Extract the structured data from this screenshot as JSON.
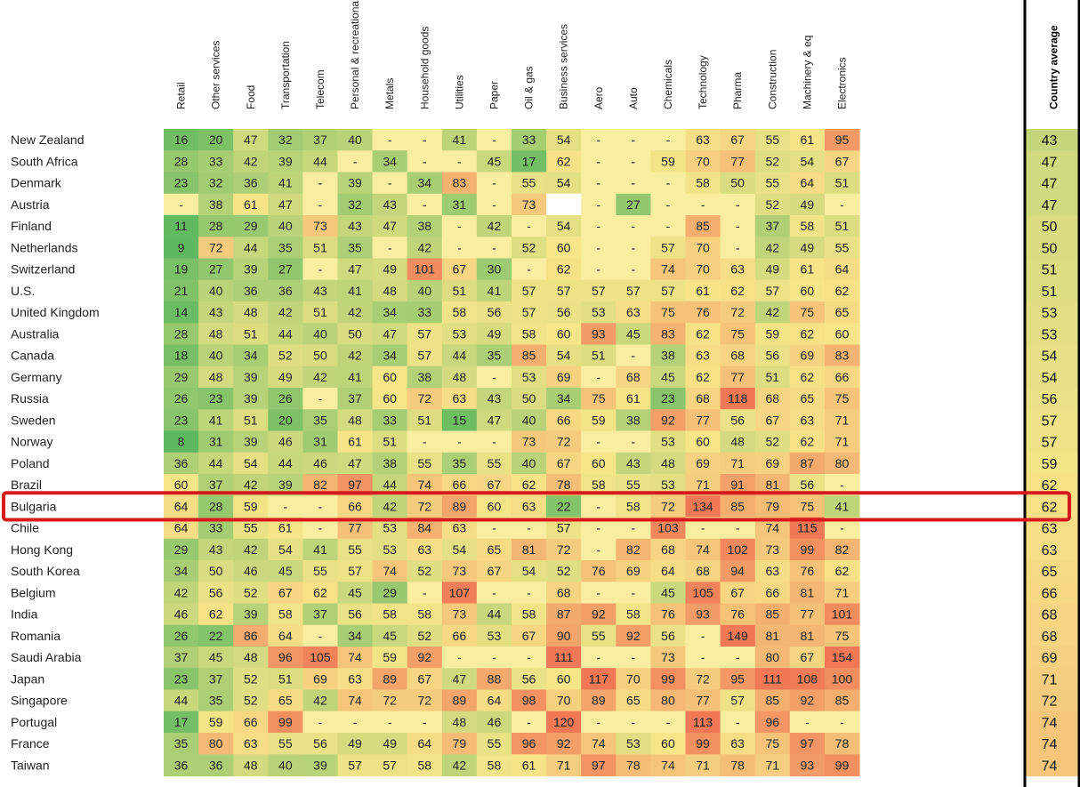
{
  "chart_data": {
    "type": "heatmap",
    "title": "",
    "columns": [
      "Retail",
      "Other services",
      "Food",
      "Transportation",
      "Telecom",
      "Personal & recreational goods",
      "Metals",
      "Household goods",
      "Utilities",
      "Paper",
      "Oil & gas",
      "Business services",
      "Aero",
      "Auto",
      "Chemicals",
      "Technology",
      "Pharma",
      "Construction",
      "Machinery & eq",
      "Electronics"
    ],
    "average_column": "Country average",
    "highlight_row": "Bulgaria",
    "highlight_color": "#d7191c",
    "color_scale": {
      "low": "#5fb85f",
      "mid": "#f7e589",
      "high": "#f07855"
    },
    "rows": [
      {
        "country": "New Zealand",
        "values": [
          "16",
          "20",
          "47",
          "32",
          "37",
          "40",
          "-",
          "-",
          "41",
          "-",
          "33",
          "54",
          "-",
          "-",
          "-",
          "63",
          "67",
          "55",
          "61",
          "95"
        ],
        "avg": "43"
      },
      {
        "country": "South Africa",
        "values": [
          "28",
          "33",
          "42",
          "39",
          "44",
          "-",
          "34",
          "-",
          "-",
          "45",
          "17",
          "62",
          "-",
          "-",
          "59",
          "70",
          "77",
          "52",
          "54",
          "67"
        ],
        "avg": "47"
      },
      {
        "country": "Denmark",
        "values": [
          "23",
          "32",
          "36",
          "41",
          "-",
          "39",
          "-",
          "34",
          "83",
          "-",
          "55",
          "54",
          "-",
          "-",
          "-",
          "58",
          "50",
          "55",
          "64",
          "51"
        ],
        "avg": "47"
      },
      {
        "country": "Austria",
        "values": [
          "-",
          "38",
          "61",
          "47",
          "-",
          "32",
          "43",
          "-",
          "31",
          "-",
          "73",
          "",
          "-",
          "27",
          "-",
          "-",
          "-",
          "52",
          "49",
          "-"
        ],
        "avg": "47"
      },
      {
        "country": "Finland",
        "values": [
          "11",
          "28",
          "29",
          "40",
          "73",
          "43",
          "47",
          "38",
          "-",
          "42",
          "-",
          "54",
          "-",
          "-",
          "-",
          "85",
          "-",
          "37",
          "58",
          "51"
        ],
        "avg": "50"
      },
      {
        "country": "Netherlands",
        "values": [
          "9",
          "72",
          "44",
          "35",
          "51",
          "35",
          "-",
          "42",
          "-",
          "-",
          "52",
          "60",
          "-",
          "-",
          "57",
          "70",
          "-",
          "42",
          "49",
          "55"
        ],
        "avg": "50"
      },
      {
        "country": "Switzerland",
        "values": [
          "19",
          "27",
          "39",
          "27",
          "-",
          "47",
          "49",
          "101",
          "67",
          "30",
          "-",
          "62",
          "-",
          "-",
          "74",
          "70",
          "63",
          "49",
          "61",
          "64"
        ],
        "avg": "51"
      },
      {
        "country": "U.S.",
        "values": [
          "21",
          "40",
          "36",
          "36",
          "43",
          "41",
          "48",
          "40",
          "51",
          "41",
          "57",
          "57",
          "57",
          "57",
          "57",
          "61",
          "62",
          "57",
          "60",
          "62"
        ],
        "avg": "51"
      },
      {
        "country": "United Kingdom",
        "values": [
          "14",
          "43",
          "48",
          "42",
          "51",
          "42",
          "34",
          "33",
          "58",
          "56",
          "57",
          "56",
          "53",
          "63",
          "75",
          "76",
          "72",
          "42",
          "75",
          "65"
        ],
        "avg": "53"
      },
      {
        "country": "Australia",
        "values": [
          "28",
          "48",
          "51",
          "44",
          "40",
          "50",
          "47",
          "57",
          "53",
          "49",
          "58",
          "60",
          "93",
          "45",
          "83",
          "62",
          "75",
          "59",
          "62",
          "60"
        ],
        "avg": "53"
      },
      {
        "country": "Canada",
        "values": [
          "18",
          "40",
          "34",
          "52",
          "50",
          "42",
          "34",
          "57",
          "44",
          "35",
          "85",
          "54",
          "51",
          "-",
          "38",
          "63",
          "68",
          "56",
          "69",
          "83"
        ],
        "avg": "54"
      },
      {
        "country": "Germany",
        "values": [
          "29",
          "48",
          "39",
          "49",
          "42",
          "41",
          "60",
          "38",
          "48",
          "-",
          "53",
          "69",
          "-",
          "68",
          "45",
          "62",
          "77",
          "51",
          "62",
          "66"
        ],
        "avg": "54"
      },
      {
        "country": "Russia",
        "values": [
          "26",
          "23",
          "39",
          "26",
          "-",
          "37",
          "60",
          "72",
          "63",
          "43",
          "50",
          "34",
          "75",
          "61",
          "23",
          "68",
          "118",
          "68",
          "65",
          "75"
        ],
        "avg": "56"
      },
      {
        "country": "Sweden",
        "values": [
          "23",
          "41",
          "51",
          "20",
          "35",
          "48",
          "33",
          "51",
          "15",
          "47",
          "40",
          "66",
          "59",
          "38",
          "92",
          "77",
          "56",
          "67",
          "63",
          "71"
        ],
        "avg": "57"
      },
      {
        "country": "Norway",
        "values": [
          "8",
          "31",
          "39",
          "46",
          "31",
          "61",
          "51",
          "-",
          "-",
          "-",
          "73",
          "72",
          "-",
          "-",
          "53",
          "60",
          "48",
          "52",
          "62",
          "71"
        ],
        "avg": "57"
      },
      {
        "country": "Poland",
        "values": [
          "36",
          "44",
          "54",
          "44",
          "46",
          "47",
          "38",
          "55",
          "35",
          "55",
          "40",
          "67",
          "60",
          "43",
          "48",
          "69",
          "71",
          "69",
          "87",
          "80"
        ],
        "avg": "59"
      },
      {
        "country": "Brazil",
        "values": [
          "60",
          "37",
          "42",
          "39",
          "82",
          "97",
          "44",
          "74",
          "66",
          "67",
          "62",
          "78",
          "58",
          "55",
          "53",
          "71",
          "91",
          "81",
          "56",
          "-"
        ],
        "avg": "62"
      },
      {
        "country": "Bulgaria",
        "values": [
          "64",
          "28",
          "59",
          "-",
          "-",
          "66",
          "42",
          "72",
          "89",
          "60",
          "63",
          "22",
          "-",
          "58",
          "72",
          "134",
          "85",
          "79",
          "75",
          "41"
        ],
        "avg": "62"
      },
      {
        "country": "Chile",
        "values": [
          "64",
          "33",
          "55",
          "61",
          "-",
          "77",
          "53",
          "84",
          "63",
          "-",
          "-",
          "57",
          "-",
          "-",
          "103",
          "-",
          "-",
          "74",
          "115",
          "-"
        ],
        "avg": "63"
      },
      {
        "country": "Hong Kong",
        "values": [
          "29",
          "43",
          "42",
          "54",
          "41",
          "55",
          "53",
          "63",
          "54",
          "65",
          "81",
          "72",
          "-",
          "82",
          "68",
          "74",
          "102",
          "73",
          "99",
          "82"
        ],
        "avg": "63"
      },
      {
        "country": "South Korea",
        "values": [
          "34",
          "50",
          "46",
          "45",
          "55",
          "57",
          "74",
          "52",
          "73",
          "67",
          "54",
          "52",
          "76",
          "69",
          "64",
          "68",
          "94",
          "63",
          "76",
          "62"
        ],
        "avg": "65"
      },
      {
        "country": "Belgium",
        "values": [
          "42",
          "56",
          "52",
          "67",
          "62",
          "45",
          "29",
          "-",
          "107",
          "-",
          "-",
          "68",
          "-",
          "-",
          "45",
          "105",
          "67",
          "66",
          "81",
          "71"
        ],
        "avg": "66"
      },
      {
        "country": "India",
        "values": [
          "46",
          "62",
          "39",
          "58",
          "37",
          "56",
          "58",
          "58",
          "73",
          "44",
          "58",
          "87",
          "92",
          "58",
          "76",
          "93",
          "76",
          "85",
          "77",
          "101"
        ],
        "avg": "68"
      },
      {
        "country": "Romania",
        "values": [
          "26",
          "22",
          "86",
          "64",
          "-",
          "34",
          "45",
          "52",
          "66",
          "53",
          "67",
          "90",
          "55",
          "92",
          "56",
          "-",
          "149",
          "81",
          "81",
          "75"
        ],
        "avg": "68"
      },
      {
        "country": "Saudi Arabia",
        "values": [
          "37",
          "45",
          "48",
          "96",
          "105",
          "74",
          "59",
          "92",
          "-",
          "-",
          "-",
          "111",
          "-",
          "-",
          "73",
          "-",
          "-",
          "80",
          "67",
          "154"
        ],
        "avg": "69"
      },
      {
        "country": "Japan",
        "values": [
          "23",
          "37",
          "52",
          "51",
          "69",
          "63",
          "89",
          "67",
          "47",
          "88",
          "56",
          "60",
          "117",
          "70",
          "99",
          "72",
          "95",
          "111",
          "108",
          "100"
        ],
        "avg": "71"
      },
      {
        "country": "Singapore",
        "values": [
          "44",
          "35",
          "52",
          "65",
          "42",
          "74",
          "72",
          "72",
          "89",
          "64",
          "98",
          "70",
          "89",
          "65",
          "80",
          "77",
          "57",
          "85",
          "92",
          "85"
        ],
        "avg": "72"
      },
      {
        "country": "Portugal",
        "values": [
          "17",
          "59",
          "66",
          "99",
          "-",
          "-",
          "-",
          "-",
          "48",
          "46",
          "-",
          "120",
          "-",
          "-",
          "-",
          "113",
          "-",
          "96",
          "-",
          "-"
        ],
        "avg": "74"
      },
      {
        "country": "France",
        "values": [
          "35",
          "80",
          "63",
          "55",
          "56",
          "49",
          "49",
          "64",
          "79",
          "55",
          "96",
          "92",
          "74",
          "53",
          "60",
          "99",
          "63",
          "75",
          "97",
          "78"
        ],
        "avg": "74"
      },
      {
        "country": "Taiwan",
        "values": [
          "36",
          "36",
          "48",
          "40",
          "39",
          "57",
          "57",
          "58",
          "42",
          "58",
          "61",
          "71",
          "97",
          "78",
          "74",
          "71",
          "78",
          "71",
          "93",
          "99"
        ],
        "avg": "74"
      }
    ]
  }
}
